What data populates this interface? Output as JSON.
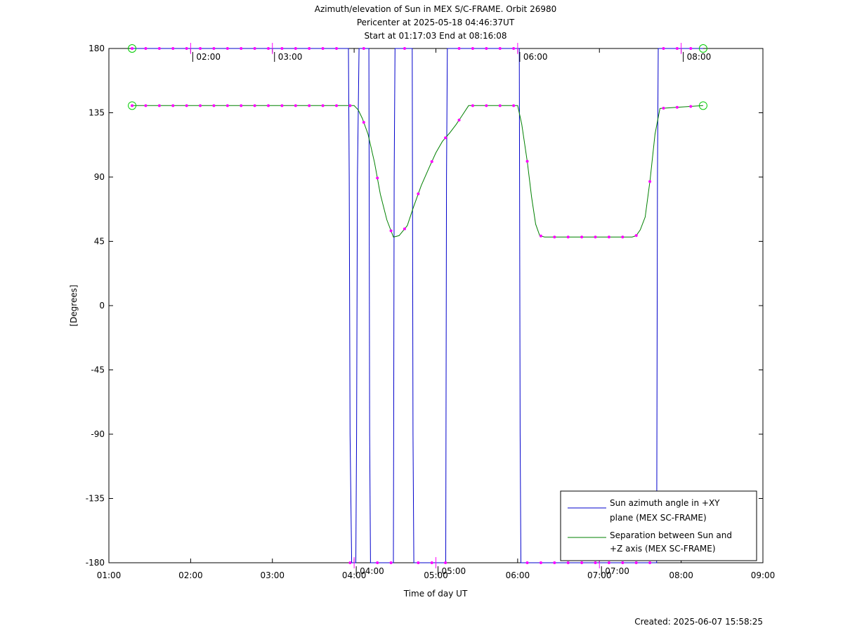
{
  "chart_data": {
    "type": "line",
    "title_lines": [
      "Azimuth/elevation of Sun in MEX S/C-FRAME.  Orbit 26980",
      "Pericenter at 2025-05-18 04:46:37UT",
      "Start at 01:17:03 End at 08:16:08"
    ],
    "xlabel": "Time of day UT",
    "ylabel": "[Degrees]",
    "footer": "Created: 2025-06-07 15:58:25",
    "xlim": [
      1.0,
      9.0
    ],
    "ylim": [
      -180,
      180
    ],
    "x_ticks": [
      1,
      2,
      3,
      4,
      5,
      6,
      7,
      8,
      9
    ],
    "x_tick_labels": [
      "01:00",
      "02:00",
      "03:00",
      "04:00",
      "05:00",
      "06:00",
      "07:00",
      "08:00",
      "09:00"
    ],
    "y_ticks": [
      180,
      135,
      90,
      45,
      0,
      -45,
      -90,
      -135,
      -180
    ],
    "y_tick_labels": [
      "180",
      "135",
      "90",
      "45",
      "0",
      "-45",
      "-90",
      "-135",
      "-180"
    ],
    "hour_marker_labels": [
      {
        "x": 2.0,
        "y": 180,
        "label": "02:00"
      },
      {
        "x": 3.0,
        "y": 180,
        "label": "03:00"
      },
      {
        "x": 4.0,
        "y": -180,
        "label": "04:00"
      },
      {
        "x": 5.0,
        "y": -180,
        "label": "05:00"
      },
      {
        "x": 6.0,
        "y": 180,
        "label": "06:00"
      },
      {
        "x": 7.0,
        "y": -180,
        "label": "07:00"
      },
      {
        "x": 8.0,
        "y": 180,
        "label": "08:00"
      }
    ],
    "legend_position": "bottom-right",
    "series": [
      {
        "name": "Sun azimuth angle in +XY plane (MEX SC-FRAME)",
        "legend_lines": [
          "Sun azimuth angle in +XY",
          "plane (MEX SC-FRAME)"
        ],
        "color": "#0000cc",
        "x": [
          1.284,
          3.93,
          3.94,
          3.95,
          3.97,
          4.02,
          4.03,
          4.04,
          4.06,
          4.18,
          4.19,
          4.2,
          4.48,
          4.49,
          4.5,
          4.71,
          4.72,
          4.73,
          5.12,
          5.13,
          5.14,
          6.02,
          6.03,
          6.04,
          7.7,
          7.71,
          7.72,
          8.269
        ],
        "y": [
          180,
          180,
          90,
          -90,
          -180,
          -180,
          -90,
          90,
          180,
          180,
          -90,
          -180,
          -180,
          90,
          180,
          180,
          -90,
          -180,
          -180,
          90,
          180,
          180,
          -90,
          -180,
          -180,
          90,
          180,
          180
        ]
      },
      {
        "name": "Separation between Sun and +Z axis (MEX SC-FRAME)",
        "legend_lines": [
          "Separation between Sun and",
          "+Z axis (MEX SC-FRAME)"
        ],
        "color": "#008000",
        "x": [
          1.284,
          2.0,
          3.0,
          3.95,
          4.0,
          4.05,
          4.1,
          4.17,
          4.25,
          4.32,
          4.4,
          4.48,
          4.55,
          4.65,
          4.72,
          4.82,
          4.92,
          5.0,
          5.08,
          5.17,
          5.25,
          5.32,
          5.4,
          5.48,
          5.6,
          6.0,
          6.05,
          6.12,
          6.17,
          6.22,
          6.27,
          6.33,
          6.5,
          7.0,
          7.4,
          7.45,
          7.5,
          7.56,
          7.62,
          7.68,
          7.74,
          8.269
        ],
        "y": [
          140,
          140,
          140,
          140,
          140,
          137,
          131,
          120,
          100,
          78,
          60,
          48,
          49,
          56,
          68,
          84,
          97,
          107,
          115,
          121,
          127,
          133,
          140,
          140,
          140,
          140,
          127,
          100,
          76,
          57,
          49,
          48,
          48,
          48,
          48,
          49,
          53,
          62,
          88,
          120,
          138,
          140
        ]
      }
    ],
    "marker_color": "#ff00ff",
    "endpoint_marker_color": "#00cc00"
  }
}
